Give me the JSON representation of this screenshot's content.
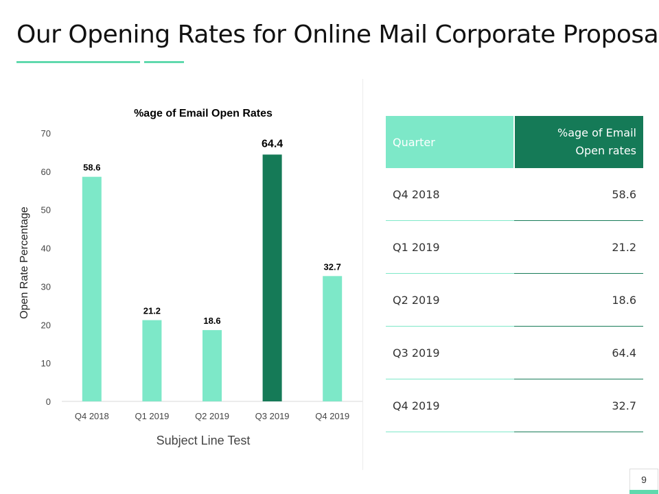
{
  "slide": {
    "title": "Our Opening Rates for Online Mail Corporate Proposal",
    "page_number": "9"
  },
  "colors": {
    "accent_light": "#7de8c8",
    "accent_dark": "#157a57",
    "underline": "#5fd9ad"
  },
  "chart_data": {
    "type": "bar",
    "title": "%age of Email Open Rates",
    "xlabel": "Subject Line Test",
    "ylabel": "Open Rate Percentage",
    "categories": [
      "Q4 2018",
      "Q1 2019",
      "Q2 2019",
      "Q3 2019",
      "Q4 2019"
    ],
    "values": [
      58.6,
      21.2,
      18.6,
      64.4,
      32.7
    ],
    "value_labels": [
      "58.6",
      "21.2",
      "18.6",
      "64.4",
      "32.7"
    ],
    "highlight_index": 3,
    "ylim": [
      0,
      70
    ],
    "yticks": [
      0,
      10,
      20,
      30,
      40,
      50,
      60,
      70
    ],
    "grid": false
  },
  "table": {
    "header_quarter": "Quarter",
    "header_rate": "%age of Email Open rates",
    "rows": [
      {
        "quarter": "Q4 2018",
        "rate": "58.6"
      },
      {
        "quarter": "Q1 2019",
        "rate": "21.2"
      },
      {
        "quarter": "Q2 2019",
        "rate": "18.6"
      },
      {
        "quarter": "Q3 2019",
        "rate": "64.4"
      },
      {
        "quarter": "Q4 2019",
        "rate": "32.7"
      }
    ]
  }
}
